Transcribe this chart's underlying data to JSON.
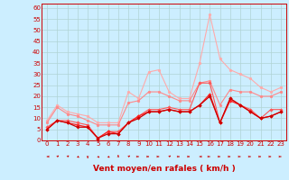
{
  "xlabel": "Vent moyen/en rafales ( km/h )",
  "background_color": "#cceeff",
  "grid_color": "#b0d4d4",
  "x_values": [
    0,
    1,
    2,
    3,
    4,
    5,
    6,
    7,
    8,
    9,
    10,
    11,
    12,
    13,
    14,
    15,
    16,
    17,
    18,
    19,
    20,
    21,
    22,
    23
  ],
  "series": [
    {
      "color": "#ffaaaa",
      "linewidth": 0.8,
      "marker": "o",
      "markersize": 2.0,
      "data": [
        9,
        16,
        13,
        12,
        11,
        8,
        8,
        8,
        22,
        19,
        31,
        32,
        22,
        19,
        19,
        35,
        57,
        37,
        32,
        30,
        28,
        24,
        22,
        24
      ]
    },
    {
      "color": "#ff8888",
      "linewidth": 0.8,
      "marker": "o",
      "markersize": 2.0,
      "data": [
        8,
        15,
        12,
        11,
        9,
        7,
        7,
        7,
        17,
        18,
        22,
        22,
        20,
        18,
        18,
        26,
        27,
        16,
        23,
        22,
        22,
        20,
        20,
        22
      ]
    },
    {
      "color": "#ff5555",
      "linewidth": 0.8,
      "marker": "D",
      "markersize": 1.8,
      "data": [
        6,
        9,
        9,
        8,
        7,
        1,
        4,
        4,
        8,
        11,
        14,
        14,
        15,
        14,
        14,
        26,
        26,
        8,
        19,
        16,
        14,
        10,
        14,
        14
      ]
    },
    {
      "color": "#ff2222",
      "linewidth": 0.9,
      "marker": "D",
      "markersize": 1.8,
      "data": [
        5,
        9,
        8,
        7,
        6,
        1,
        4,
        3,
        8,
        11,
        13,
        13,
        14,
        13,
        13,
        16,
        21,
        8,
        18,
        16,
        13,
        10,
        11,
        13
      ]
    },
    {
      "color": "#cc0000",
      "linewidth": 0.9,
      "marker": "D",
      "markersize": 1.8,
      "data": [
        5,
        9,
        8,
        6,
        6,
        1,
        3,
        3,
        8,
        10,
        13,
        13,
        14,
        13,
        13,
        16,
        20,
        8,
        19,
        16,
        13,
        10,
        11,
        13
      ]
    }
  ],
  "arrow_angles": [
    180,
    45,
    45,
    315,
    270,
    315,
    315,
    90,
    45,
    0,
    0,
    0,
    45,
    0,
    0,
    180,
    0,
    0,
    0,
    0,
    0,
    0,
    0,
    0
  ],
  "ylim": [
    0,
    62
  ],
  "xlim": [
    -0.5,
    23.5
  ],
  "yticks": [
    0,
    5,
    10,
    15,
    20,
    25,
    30,
    35,
    40,
    45,
    50,
    55,
    60
  ],
  "xticks": [
    0,
    1,
    2,
    3,
    4,
    5,
    6,
    7,
    8,
    9,
    10,
    11,
    12,
    13,
    14,
    15,
    16,
    17,
    18,
    19,
    20,
    21,
    22,
    23
  ],
  "tick_color": "#cc0000",
  "label_color": "#cc0000",
  "xlabel_fontsize": 6.5,
  "tick_fontsize": 5.0
}
